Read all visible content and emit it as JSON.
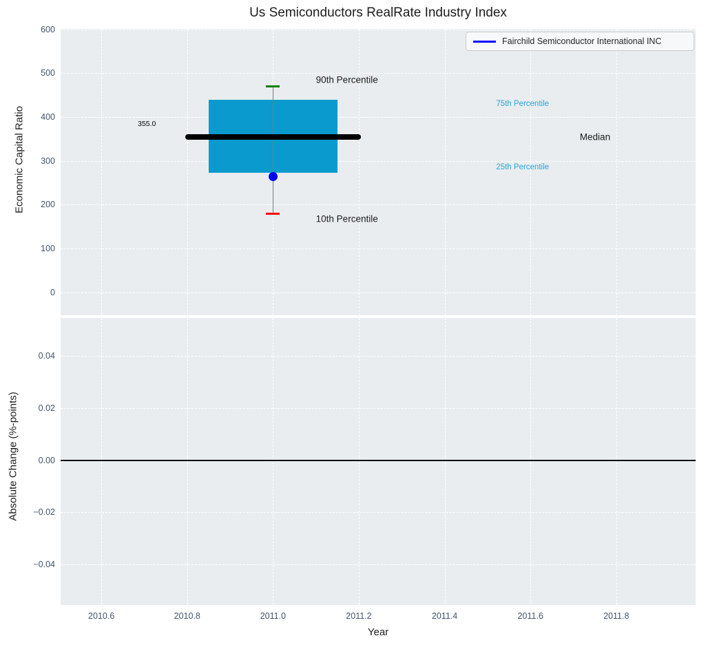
{
  "figure": {
    "background": "#ffffff",
    "panel_background": "#e9edef",
    "grid_color": "#ffffff",
    "tick_color": "#42536b",
    "text_color": "#1c1c1c"
  },
  "chart_data": [
    {
      "type": "boxplot",
      "title": "Us Semiconductors RealRate Industry Index",
      "ylabel": "Economic Capital Ratio",
      "xlim": [
        2010.505,
        2011.985
      ],
      "ylim": [
        -52,
        601
      ],
      "grid": true,
      "xticks": [
        2010.6,
        2010.8,
        2011.0,
        2011.2,
        2011.4,
        2011.6,
        2011.8
      ],
      "yticks": [
        600,
        500,
        400,
        300,
        200,
        100,
        0
      ],
      "ytick_labels": [
        "600",
        "500",
        "400",
        "300",
        "200",
        "100",
        "0"
      ],
      "legend": {
        "label": "Fairchild Semiconductor International INC",
        "line_color": "#0000ff",
        "position": "upper right"
      },
      "box": {
        "x_center": 2011.0,
        "box_x_range": [
          2010.85,
          2011.15
        ],
        "median_x_range": [
          2010.795,
          2011.205
        ],
        "cap_half_width": 0.016,
        "p90": 470,
        "p75": 440,
        "median": 355,
        "p25": 273,
        "p10": 180,
        "company_point": {
          "x": 2011.0,
          "value": 265,
          "color": "#0000ee"
        }
      },
      "colors": {
        "box_fill": "#0a9acd",
        "median_line": "#000000",
        "whisker": "#7a7a7a",
        "p90_cap": "#008000",
        "p10_cap": "#ff0000",
        "percentile_label_blue": "#2ba3d9"
      },
      "annotations": [
        {
          "id": "median-value",
          "text": "355.0",
          "x": 2010.685,
          "y": 384,
          "color": "#000000",
          "size": 10.5
        },
        {
          "id": "p90-label",
          "text": "90th Percentile",
          "x": 2011.1,
          "y": 485,
          "color": "#1c1c1c",
          "size": 13.5
        },
        {
          "id": "p75-label",
          "text": "75th Percentile",
          "x": 2011.52,
          "y": 430,
          "color": "#2ba3d9",
          "size": 11.5
        },
        {
          "id": "median-label",
          "text": "Median",
          "x": 2011.715,
          "y": 355,
          "color": "#1c1c1c",
          "size": 13.5
        },
        {
          "id": "p25-label",
          "text": "25th Percentile",
          "x": 2011.52,
          "y": 285,
          "color": "#2ba3d9",
          "size": 11.5
        },
        {
          "id": "p10-label",
          "text": "10th Percentile",
          "x": 2011.1,
          "y": 167,
          "color": "#1c1c1c",
          "size": 13.5
        }
      ]
    },
    {
      "type": "line",
      "ylabel": "Absolute Change (%-points)",
      "xlabel": "Year",
      "xlim": [
        2010.505,
        2011.985
      ],
      "ylim": [
        -0.0555,
        0.0545
      ],
      "grid": true,
      "xticks": [
        2010.6,
        2010.8,
        2011.0,
        2011.2,
        2011.4,
        2011.6,
        2011.8
      ],
      "xtick_labels": [
        "2010.6",
        "2010.8",
        "2011.0",
        "2011.2",
        "2011.4",
        "2011.6",
        "2011.8"
      ],
      "yticks": [
        0.04,
        0.02,
        0.0,
        -0.02,
        -0.04
      ],
      "ytick_labels": [
        "0.04",
        "0.02",
        "0.00",
        "−0.02",
        "−0.04"
      ],
      "zero_line": {
        "y": 0.0,
        "color": "#000000"
      },
      "series": []
    }
  ]
}
